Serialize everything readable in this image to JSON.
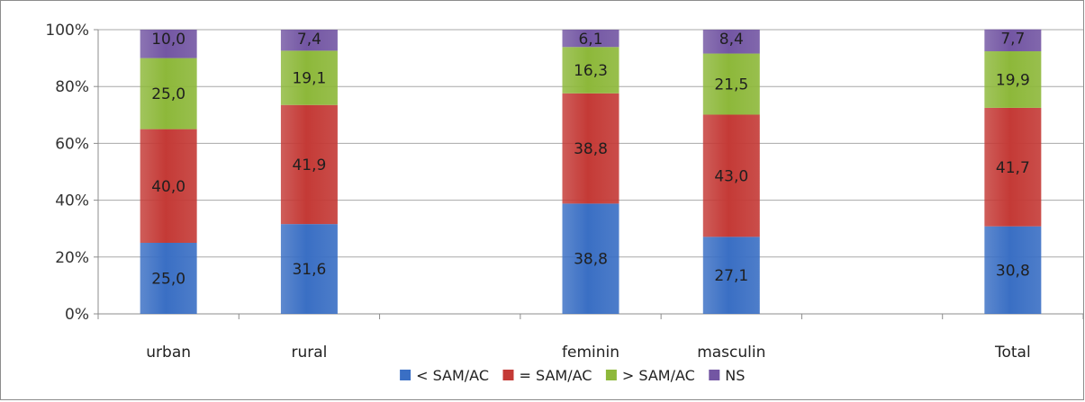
{
  "chart_data": {
    "type": "bar",
    "stacked": true,
    "percent_stacked": true,
    "categories": [
      "urban",
      "rural",
      "",
      "feminin",
      "masculin",
      "",
      "Total"
    ],
    "series": [
      {
        "name": "< SAM/AC",
        "color": "#3a6fc4",
        "values": [
          25.0,
          31.6,
          null,
          38.8,
          27.1,
          null,
          30.8
        ],
        "labels": [
          "25,0",
          "31,6",
          null,
          "38,8",
          "27,1",
          null,
          "30,8"
        ]
      },
      {
        "name": "= SAM/AC",
        "color": "#c43a36",
        "values": [
          40.0,
          41.9,
          null,
          38.8,
          43.0,
          null,
          41.7
        ],
        "labels": [
          "40,0",
          "41,9",
          null,
          "38,8",
          "43,0",
          null,
          "41,7"
        ]
      },
      {
        "name": "> SAM/AC",
        "color": "#8db83a",
        "values": [
          25.0,
          19.1,
          null,
          16.3,
          21.5,
          null,
          19.9
        ],
        "labels": [
          "25,0",
          "19,1",
          null,
          "16,3",
          "21,5",
          null,
          "19,9"
        ]
      },
      {
        "name": "NS",
        "color": "#7356a3",
        "values": [
          10.0,
          7.4,
          null,
          6.1,
          8.4,
          null,
          7.7
        ],
        "labels": [
          "10,0",
          "7,4",
          null,
          "6,1",
          "8,4",
          null,
          "7,7"
        ]
      }
    ],
    "y_ticks": [
      "0%",
      "20%",
      "40%",
      "60%",
      "80%",
      "100%"
    ],
    "ylim": [
      0,
      100
    ],
    "grid": true,
    "legend_position": "bottom"
  }
}
